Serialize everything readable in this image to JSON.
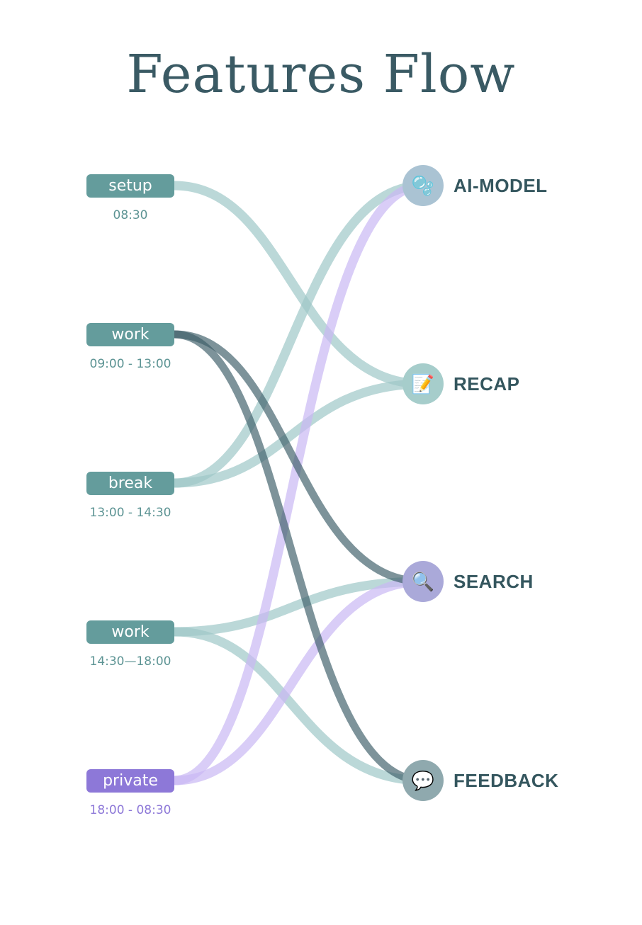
{
  "title": "Features Flow",
  "colors": {
    "teal": "#649c9c",
    "teal_link": "#9ec7c7",
    "dark_link": "#3f606a",
    "purple": "#8d78d8",
    "purple_link": "#c9b8f4",
    "title": "#3a5a64"
  },
  "sources": [
    {
      "id": "setup",
      "label": "setup",
      "time": "08:30",
      "color": "#649c9c",
      "time_color": "#5d9494"
    },
    {
      "id": "work1",
      "label": "work",
      "time": "09:00 - 13:00",
      "color": "#649c9c",
      "time_color": "#5d9494"
    },
    {
      "id": "break",
      "label": "break",
      "time": "13:00 - 14:30",
      "color": "#649c9c",
      "time_color": "#5d9494"
    },
    {
      "id": "work2",
      "label": "work",
      "time": "14:30—18:00",
      "color": "#649c9c",
      "time_color": "#5d9494"
    },
    {
      "id": "private",
      "label": "private",
      "time": "18:00 - 08:30",
      "color": "#8d78d8",
      "time_color": "#8d78d8"
    }
  ],
  "targets": [
    {
      "id": "ai_model",
      "label": "AI-MODEL",
      "icon": "bubbles-icon",
      "glyph": "🫧",
      "bg": "#aac3d3"
    },
    {
      "id": "recap",
      "label": "RECAP",
      "icon": "memo-icon",
      "glyph": "📝",
      "bg": "#a6cdcb"
    },
    {
      "id": "search",
      "label": "SEARCH",
      "icon": "magnifier-icon",
      "glyph": "🔍",
      "bg": "#aaa9d9"
    },
    {
      "id": "feedback",
      "label": "FEEDBACK",
      "icon": "speech-bubble-icon",
      "glyph": "💬",
      "bg": "#8fa9ae"
    }
  ],
  "links": [
    {
      "from": "setup",
      "to": "recap",
      "style": "teal"
    },
    {
      "from": "break",
      "to": "ai_model",
      "style": "teal"
    },
    {
      "from": "break",
      "to": "recap",
      "style": "teal"
    },
    {
      "from": "work2",
      "to": "search",
      "style": "teal"
    },
    {
      "from": "work2",
      "to": "feedback",
      "style": "teal"
    },
    {
      "from": "private",
      "to": "ai_model",
      "style": "purple"
    },
    {
      "from": "private",
      "to": "search",
      "style": "purple"
    },
    {
      "from": "work1",
      "to": "search",
      "style": "dark"
    },
    {
      "from": "work1",
      "to": "feedback",
      "style": "dark"
    }
  ]
}
